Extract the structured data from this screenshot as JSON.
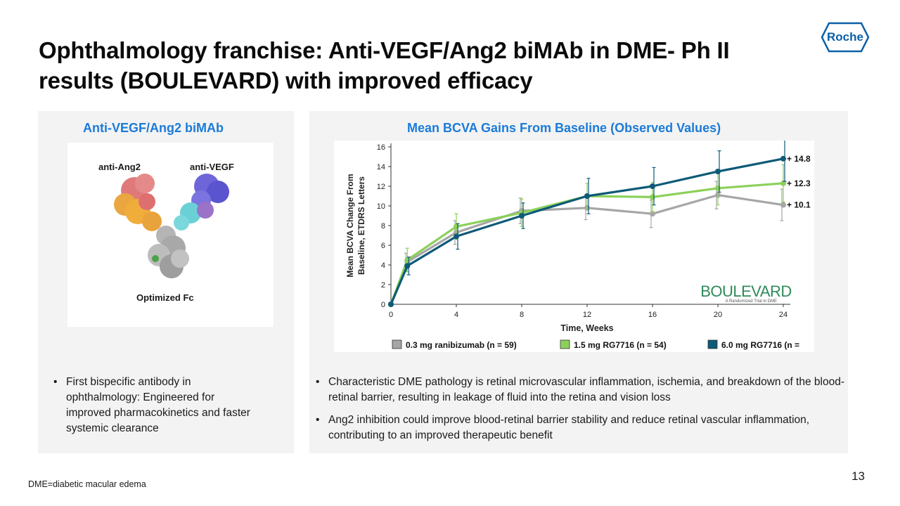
{
  "slide": {
    "title": "Ophthalmology franchise: Anti-VEGF/Ang2 biMAb in DME-  Ph II results (BOULEVARD) with improved efficacy",
    "logo_text": "Roche",
    "page_number": "13",
    "footnote": "DME=diabetic macular edema"
  },
  "left_panel": {
    "heading": "Anti-VEGF/Ang2 biMAb",
    "labels": {
      "ang2": "anti-Ang2",
      "vegf": "anti-VEGF",
      "fc": "Optimized Fc"
    },
    "bullets": [
      "First bispecific antibody in ophthalmology: Engineered  for improved pharmacokinetics and faster systemic clearance"
    ]
  },
  "right_panel": {
    "heading": "Mean BCVA Gains From Baseline (Observed Values)",
    "bullets": [
      "Characteristic DME pathology is retinal microvascular inflammation, ischemia, and breakdown of the blood-retinal barrier, resulting in leakage of fluid into the retina and vision loss",
      "Ang2 inhibition could improve blood-retinal barrier stability and reduce retinal vascular inflammation, contributing to an improved therapeutic benefit"
    ]
  },
  "chart_data": {
    "type": "line",
    "title": "Mean BCVA Gains From Baseline (Observed Values)",
    "xlabel": "Time, Weeks",
    "ylabel_line1": "Mean BCVA Change From",
    "ylabel_line2": "Baseline, ETDRS Letters",
    "x": [
      0,
      1,
      4,
      8,
      12,
      16,
      20,
      24
    ],
    "x_ticks": [
      0,
      4,
      8,
      12,
      16,
      20,
      24
    ],
    "y_ticks": [
      0,
      2,
      4,
      6,
      8,
      10,
      12,
      14,
      16
    ],
    "xlim": [
      0,
      24
    ],
    "ylim": [
      0,
      16
    ],
    "series": [
      {
        "name": "0.3 mg ranibizumab (n = 59)",
        "color": "#a6a6a6",
        "values": [
          0,
          4.3,
          7.3,
          9.5,
          9.8,
          9.2,
          11.1,
          10.1
        ],
        "err": [
          0,
          0.9,
          1.2,
          1.3,
          1.2,
          1.4,
          1.4,
          1.6
        ]
      },
      {
        "name": "1.5 mg RG7716 (n = 54)",
        "color": "#8cd05a",
        "values": [
          0,
          4.5,
          7.9,
          9.3,
          11.0,
          10.9,
          11.8,
          12.3
        ],
        "err": [
          0,
          1.2,
          1.3,
          1.4,
          1.3,
          1.5,
          1.7,
          1.9
        ]
      },
      {
        "name": "6.0 mg RG7716 (n =",
        "color": "#0e5a78",
        "values": [
          0,
          3.9,
          6.9,
          9.0,
          11.0,
          12.0,
          13.5,
          14.8
        ],
        "err": [
          0,
          0.9,
          1.3,
          1.3,
          1.8,
          1.9,
          2.1,
          2.3
        ]
      }
    ],
    "end_labels": [
      "+ 14.8",
      "+ 12.3",
      "+ 10.1"
    ],
    "watermark": "BOULEVARD",
    "watermark_sub": "A Randomized Trial in DME"
  }
}
